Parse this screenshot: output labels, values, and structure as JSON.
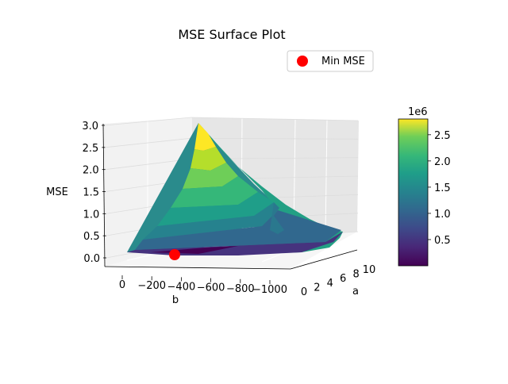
{
  "chart_data": {
    "type": "surface3d",
    "title": "MSE Surface Plot",
    "legend": {
      "entries": [
        {
          "label": "Min MSE",
          "color": "#ff0000",
          "marker": "circle"
        }
      ],
      "placement": "top-right"
    },
    "axes": {
      "x": {
        "label": "b",
        "range": [
          0,
          -1000
        ],
        "ticks": [
          "0",
          "−200",
          "−400",
          "−600",
          "−800",
          "−1000"
        ]
      },
      "y": {
        "label": "a",
        "range": [
          0,
          10
        ],
        "ticks": [
          "0",
          "2",
          "4",
          "6",
          "8",
          "10"
        ]
      },
      "z": {
        "label": "MSE",
        "range": [
          0,
          3.0
        ],
        "ticks": [
          "0.0",
          "0.5",
          "1.0",
          "1.5",
          "2.0",
          "2.5",
          "3.0"
        ]
      }
    },
    "min_point": {
      "b": -350,
      "a": 0,
      "mse": 0
    },
    "colorbar": {
      "colormap": "viridis",
      "multiplier": "1e6",
      "ticks": [
        "0.5",
        "1.0",
        "1.5",
        "2.0",
        "2.5"
      ],
      "range": [
        0.0,
        2.8
      ]
    },
    "grid": true
  }
}
